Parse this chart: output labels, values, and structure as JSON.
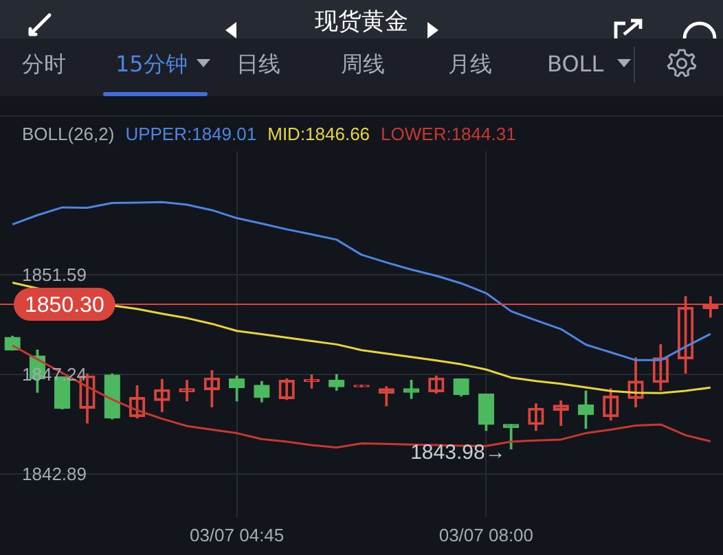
{
  "chart_data": {
    "type": "candlestick",
    "title": "现货黄金",
    "legend_title": "BOLL(26,2)",
    "legend": "top left",
    "categories": [
      null,
      null,
      null,
      null,
      null,
      null,
      null,
      null,
      null,
      "03/07 04:45",
      null,
      null,
      null,
      null,
      null,
      null,
      null,
      null,
      null,
      "03/07 08:00",
      null,
      null,
      null,
      null,
      null,
      null,
      null,
      null,
      null
    ],
    "ohlc": [
      [
        1848.86,
        1848.91,
        1848.3,
        1848.3
      ],
      [
        1848.05,
        1848.3,
        1846.46,
        1847.04
      ],
      [
        1847.13,
        1847.13,
        1845.73,
        1845.76
      ],
      [
        1845.76,
        1847.26,
        1845.11,
        1847.17
      ],
      [
        1847.21,
        1847.26,
        1845.29,
        1845.33
      ],
      [
        1845.39,
        1846.74,
        1845.33,
        1846.23
      ],
      [
        1846.1,
        1847.02,
        1845.61,
        1846.57
      ],
      [
        1846.48,
        1846.98,
        1846.08,
        1846.61
      ],
      [
        1846.57,
        1847.4,
        1845.82,
        1847.08
      ],
      [
        1847.04,
        1847.17,
        1846.08,
        1846.66
      ],
      [
        1846.76,
        1846.93,
        1846.04,
        1846.23
      ],
      [
        1846.18,
        1847.04,
        1846.14,
        1846.98
      ],
      [
        1846.93,
        1847.21,
        1846.64,
        1847.02
      ],
      [
        1846.98,
        1847.23,
        1846.55,
        1846.7
      ],
      [
        1846.7,
        1846.76,
        1846.7,
        1846.76
      ],
      [
        1846.42,
        1846.7,
        1845.86,
        1846.61
      ],
      [
        1846.61,
        1846.98,
        1846.19,
        1846.46
      ],
      [
        1846.48,
        1847.17,
        1846.42,
        1847.08
      ],
      [
        1847.04,
        1847.04,
        1846.29,
        1846.36
      ],
      [
        1846.38,
        1846.38,
        1844.79,
        1845.05
      ],
      [
        1845.05,
        1845.05,
        1843.98,
        1844.92
      ],
      [
        1845.05,
        1845.95,
        1844.79,
        1845.76
      ],
      [
        1845.67,
        1846.08,
        1845.01,
        1845.89
      ],
      [
        1845.91,
        1846.51,
        1844.88,
        1845.48
      ],
      [
        1845.39,
        1846.61,
        1845.24,
        1846.29
      ],
      [
        1846.19,
        1847.96,
        1845.82,
        1846.94
      ],
      [
        1846.89,
        1848.54,
        1846.55,
        1847.96
      ],
      [
        1847.92,
        1850.64,
        1847.3,
        1850.17
      ],
      [
        1850.11,
        1850.64,
        1849.74,
        1850.3
      ]
    ],
    "colors": [
      "#4cb860",
      "#4cb860",
      "#4cb860",
      "#d9453c",
      "#4cb860",
      "#d9453c",
      "#d9453c",
      "#d9453c",
      "#d9453c",
      "#4cb860",
      "#4cb860",
      "#d9453c",
      "#d9453c",
      "#4cb860",
      "#d9453c",
      "#d9453c",
      "#4cb860",
      "#d9453c",
      "#4cb860",
      "#4cb860",
      "#4cb860",
      "#d9453c",
      "#d9453c",
      "#4cb860",
      "#d9453c",
      "#d9453c",
      "#d9453c",
      "#d9453c",
      "#d9453c"
    ],
    "series": [
      {
        "name": "UPPER:1849.01",
        "type": "line",
        "color": "#4d86e0",
        "values": [
          1853.8,
          1854.2,
          1854.54,
          1854.52,
          1854.73,
          1854.75,
          1854.77,
          1854.66,
          1854.42,
          1854.07,
          1853.83,
          1853.58,
          1853.36,
          1853.13,
          1852.47,
          1852.13,
          1851.82,
          1851.55,
          1851.22,
          1850.79,
          1850.0,
          1849.6,
          1849.22,
          1848.54,
          1848.2,
          1847.86,
          1847.86,
          1848.45,
          1849.01
        ]
      },
      {
        "name": "MID:1846.66",
        "type": "line",
        "color": "#e8d53c",
        "values": [
          1851.25,
          null,
          null,
          null,
          1850.25,
          1850.1,
          1849.89,
          1849.7,
          1849.45,
          1849.14,
          1849.0,
          1848.85,
          1848.7,
          1848.55,
          1848.3,
          1848.15,
          1848.0,
          1847.85,
          1847.68,
          1847.45,
          1847.1,
          1846.95,
          1846.83,
          1846.67,
          1846.51,
          1846.44,
          1846.42,
          1846.52,
          1846.66
        ]
      },
      {
        "name": "LOWER:1844.31",
        "type": "line",
        "color": "#c7392f",
        "values": [
          1848.5,
          1847.9,
          1847.3,
          1846.7,
          1846.14,
          1845.67,
          1845.3,
          1844.98,
          1844.82,
          1844.67,
          1844.41,
          1844.3,
          1844.15,
          1844.04,
          1844.22,
          1844.2,
          1844.17,
          1844.15,
          1844.12,
          1844.11,
          1844.3,
          1844.35,
          1844.39,
          1844.67,
          1844.82,
          1845.0,
          1845.05,
          1844.58,
          1844.31
        ]
      }
    ],
    "ylim": [
      1841.0,
      1857.0
    ],
    "yticks": [
      1851.59,
      1847.24,
      1842.89
    ],
    "grid": true,
    "ref_lines": [
      {
        "axis": "y",
        "value": 1850.3,
        "label": "1850.30",
        "color": "#d9453c"
      }
    ],
    "annotations": [
      "分时",
      "15分钟",
      "日线",
      "周线",
      "月线",
      "BOLL",
      {
        "text": "1843.98→",
        "y": 1843.98
      }
    ]
  }
}
